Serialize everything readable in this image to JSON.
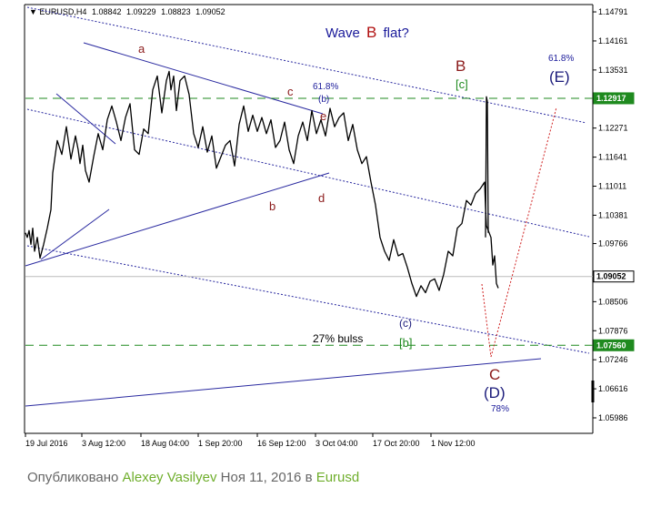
{
  "chart_data": {
    "type": "line",
    "header": {
      "symbol": "EURUSD,H4",
      "ohlc": [
        "1.08842",
        "1.09229",
        "1.08823",
        "1.09052"
      ]
    },
    "title": "Wave",
    "title_letter": "B",
    "title_suffix": "flat?",
    "ylim": [
      1.0565,
      1.1495
    ],
    "y_ticks": [
      "1.14791",
      "1.14161",
      "1.13531",
      "1.12271",
      "1.11641",
      "1.11011",
      "1.10381",
      "1.09766",
      "1.08506",
      "1.07876",
      "1.07246",
      "1.06616",
      "1.05986"
    ],
    "x_tick_labels": [
      "19 Jul 2016",
      "3 Aug 12:00",
      "18 Aug 04:00",
      "1 Sep 20:00",
      "16 Sep 12:00",
      "3 Oct 04:00",
      "17 Oct 20:00",
      "1 Nov 12:00"
    ],
    "price_levels": [
      {
        "value": 1.12917,
        "label": "1.12917",
        "style": "dashed",
        "color": "#1f8a1f"
      },
      {
        "value": 1.0756,
        "label": "1.07560",
        "style": "dashed",
        "color": "#1f8a1f"
      },
      {
        "value": 1.09052,
        "label": "1.09052",
        "style": "solid",
        "color": "#bbbbbb"
      }
    ],
    "series": [
      {
        "x": [
          0,
          2,
          4,
          6,
          8,
          10,
          13,
          16,
          20,
          24,
          28,
          30,
          35,
          40,
          45,
          50,
          55,
          58,
          60,
          63,
          66,
          70,
          75,
          80,
          85,
          90,
          95,
          100,
          105,
          110,
          115,
          120,
          125,
          130,
          135,
          140,
          145,
          150,
          155,
          158,
          160,
          163,
          166,
          170,
          175,
          180,
          185,
          190,
          195,
          200,
          205,
          210,
          215,
          220,
          225,
          230,
          235,
          240,
          245,
          250,
          255,
          260,
          265,
          270,
          275,
          280,
          285,
          290,
          295,
          300,
          305,
          310,
          315,
          320,
          325,
          330,
          335,
          340,
          345,
          350,
          355,
          360,
          365,
          370,
          375,
          380,
          385,
          390,
          395,
          400,
          405,
          410,
          415,
          420,
          425,
          430,
          435,
          440,
          445,
          450,
          455,
          460,
          465,
          470,
          475,
          480,
          485,
          490,
          495,
          500,
          505,
          506,
          507,
          508,
          510,
          512,
          514,
          516,
          518,
          520
        ],
        "values": [
          1.1,
          1.099,
          1.1005,
          1.0975,
          1.101,
          1.096,
          1.099,
          1.0945,
          1.0975,
          1.101,
          1.105,
          1.113,
          1.12,
          1.117,
          1.123,
          1.116,
          1.121,
          1.118,
          1.115,
          1.119,
          1.1135,
          1.111,
          1.1165,
          1.1215,
          1.118,
          1.1245,
          1.1275,
          1.124,
          1.12,
          1.125,
          1.128,
          1.118,
          1.117,
          1.1225,
          1.1215,
          1.131,
          1.134,
          1.126,
          1.133,
          1.135,
          1.131,
          1.134,
          1.1265,
          1.133,
          1.134,
          1.13,
          1.1215,
          1.1185,
          1.123,
          1.1175,
          1.121,
          1.114,
          1.1165,
          1.119,
          1.12,
          1.1145,
          1.1235,
          1.1275,
          1.122,
          1.1255,
          1.122,
          1.125,
          1.1215,
          1.1245,
          1.1185,
          1.12,
          1.124,
          1.118,
          1.115,
          1.121,
          1.124,
          1.12,
          1.1265,
          1.1215,
          1.1245,
          1.121,
          1.127,
          1.123,
          1.125,
          1.126,
          1.12,
          1.1235,
          1.118,
          1.115,
          1.1165,
          1.111,
          1.106,
          1.099,
          1.096,
          1.094,
          1.0985,
          1.095,
          1.0955,
          1.0925,
          1.089,
          1.0862,
          1.0885,
          1.087,
          1.0895,
          1.09,
          1.0875,
          1.091,
          1.096,
          1.095,
          1.101,
          1.102,
          1.107,
          1.106,
          1.1085,
          1.1095,
          1.111,
          1.1055,
          1.1015,
          1.101,
          1.1,
          1.099,
          1.093,
          1.095,
          1.089,
          1.088
        ]
      },
      {
        "name": "spike",
        "x": [
          506,
          507,
          508,
          509
        ],
        "values": [
          1.099,
          1.1295,
          1.1285,
          1.1
        ]
      }
    ],
    "wave_labels": {
      "a": "a",
      "b": "b",
      "c": "c",
      "d": "d",
      "e": "e",
      "B": "B",
      "c_green": "[c]",
      "b_green": "[b]",
      "c_paren": "(c)",
      "C": "C",
      "D": "(D)",
      "E": "(E)",
      "b_fib": "61.8%",
      "b_paren": "(b)",
      "E_fib": "61.8%",
      "D_fib": "78%",
      "bulls": "27% bulss"
    }
  },
  "caption": {
    "prefix": "Опубликовано",
    "author": "Alexey Vasilyev",
    "date": "Ноя 11, 2016",
    "in": "в",
    "pair": "Eurusd"
  },
  "colors": {
    "price": "#000000",
    "trendline": "#2a2aa0",
    "level": "#1f8a1f",
    "wave_red": "#8b1a1a",
    "wave_blue": "#1a1a7a",
    "projection": "#d02020"
  }
}
